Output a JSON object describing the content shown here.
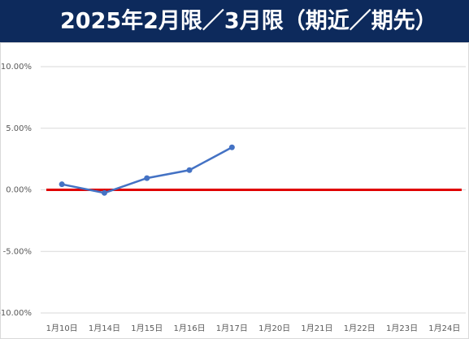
{
  "chart_data": {
    "type": "line",
    "title": "2025年2月限／3月限（期近／期先）",
    "categories": [
      "1月10日",
      "1月14日",
      "1月15日",
      "1月16日",
      "1月17日",
      "1月20日",
      "1月21日",
      "1月22日",
      "1月23日",
      "1月24日"
    ],
    "series": [
      {
        "name": "期近／期先",
        "color": "#4472c4",
        "values": [
          0.45,
          -0.25,
          0.95,
          1.6,
          3.45,
          null,
          null,
          null,
          null,
          null
        ]
      }
    ],
    "reference_line": {
      "value": 0,
      "color": "#e00000"
    },
    "ylim": [
      -10,
      10
    ],
    "yticks": [
      {
        "value": -10,
        "label": "-10.00%"
      },
      {
        "value": -5,
        "label": "-5.00%"
      },
      {
        "value": 0,
        "label": "0.00%"
      },
      {
        "value": 5,
        "label": "5.00%"
      },
      {
        "value": 10,
        "label": "10.00%"
      }
    ],
    "grid": true
  }
}
